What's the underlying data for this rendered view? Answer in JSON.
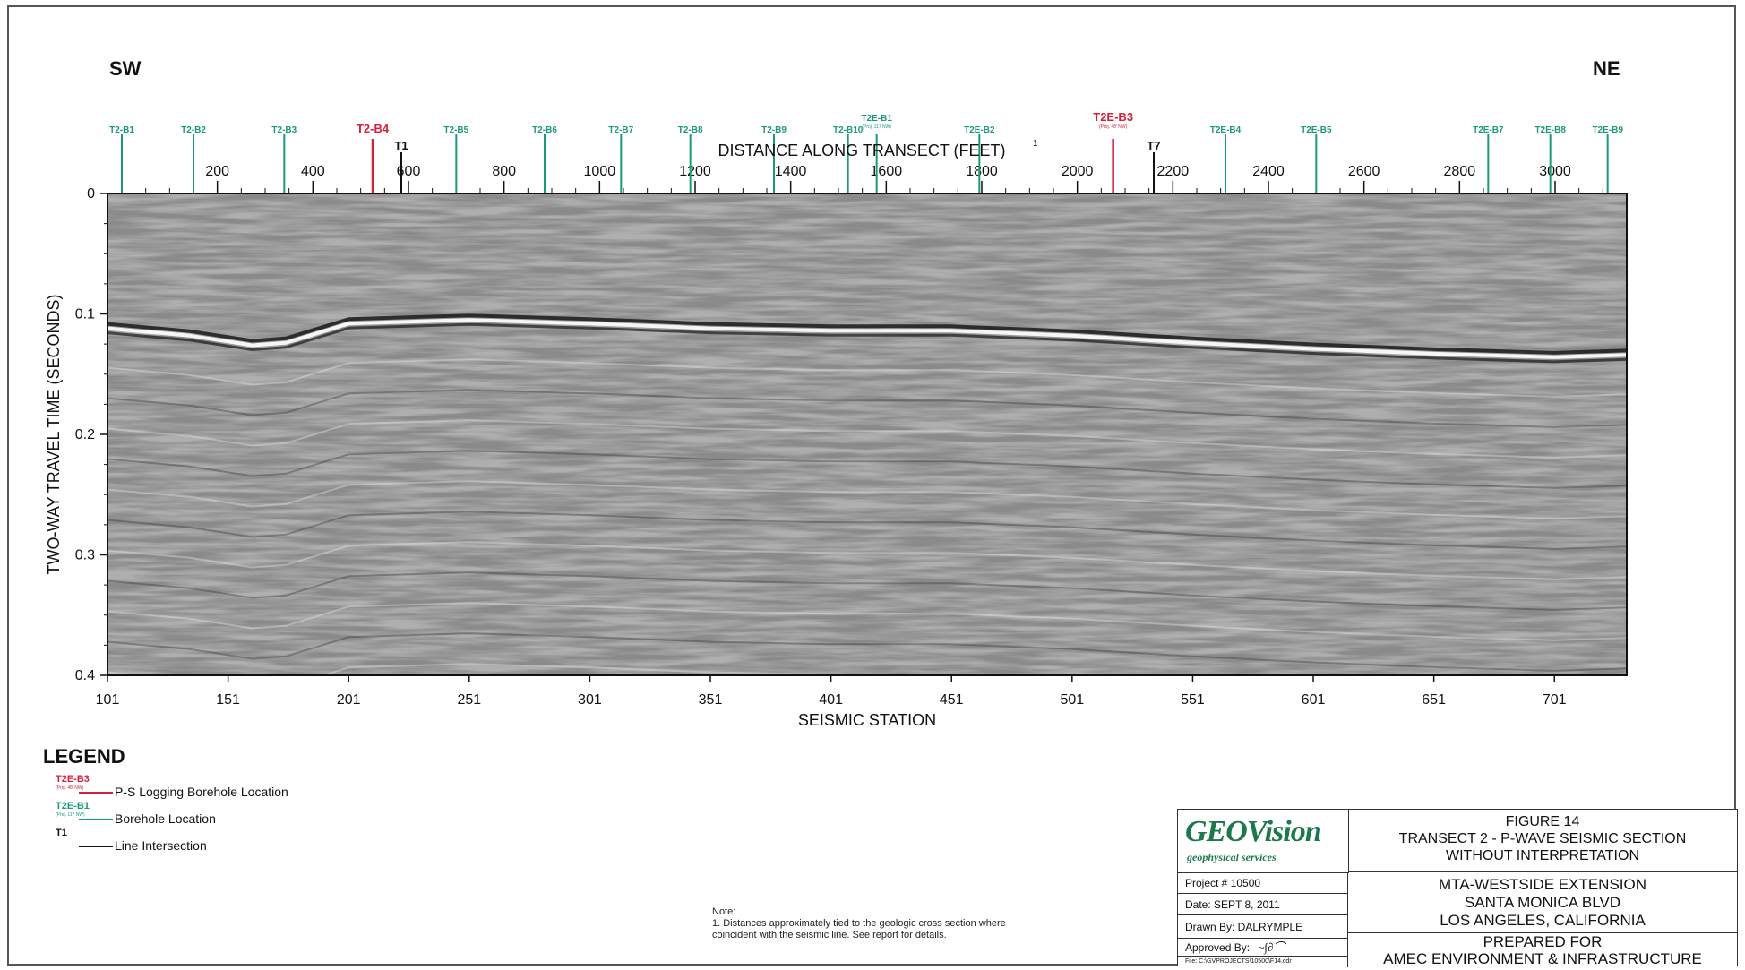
{
  "directions": {
    "left": "SW",
    "right": "NE"
  },
  "chart_data": {
    "type": "seismic_section",
    "top_axis_label": "DISTANCE ALONG TRANSECT (FEET)",
    "top_axis_superscript": "1",
    "top_axis_ticks": [
      "200",
      "400",
      "600",
      "800",
      "1000",
      "1200",
      "1400",
      "1600",
      "1800",
      "2000",
      "2200",
      "2400",
      "2600",
      "2800",
      "3000"
    ],
    "top_axis_range_ft": [
      -30,
      3150
    ],
    "xlabel": "SEISMIC STATION",
    "x_ticks": [
      "101",
      "151",
      "201",
      "251",
      "301",
      "351",
      "401",
      "451",
      "501",
      "551",
      "601",
      "651",
      "701"
    ],
    "x_range": [
      101,
      731
    ],
    "ylabel": "TWO-WAY TRAVEL TIME (SECONDS)",
    "y_ticks": [
      "0",
      "0.1",
      "0.2",
      "0.3",
      "0.4"
    ],
    "ylim": [
      0,
      0.4
    ],
    "boreholes": [
      {
        "name": "T2-B1",
        "ft": 0,
        "kind": "borehole"
      },
      {
        "name": "T2-B2",
        "ft": 150,
        "kind": "borehole"
      },
      {
        "name": "T2-B3",
        "ft": 340,
        "kind": "borehole"
      },
      {
        "name": "T2-B4",
        "ft": 525,
        "kind": "ps_logging"
      },
      {
        "name": "T2-B5",
        "ft": 700,
        "kind": "borehole"
      },
      {
        "name": "T2-B6",
        "ft": 885,
        "kind": "borehole"
      },
      {
        "name": "T2-B7",
        "ft": 1045,
        "kind": "borehole"
      },
      {
        "name": "T2-B8",
        "ft": 1190,
        "kind": "borehole"
      },
      {
        "name": "T2-B9",
        "ft": 1365,
        "kind": "borehole"
      },
      {
        "name": "T2-B10",
        "ft": 1520,
        "kind": "borehole"
      },
      {
        "name": "T2E-B1",
        "ft": 1580,
        "kind": "borehole",
        "sub": "(Proj. 117 NW)"
      },
      {
        "name": "T2E-B2",
        "ft": 1795,
        "kind": "borehole"
      },
      {
        "name": "T2E-B3",
        "ft": 2075,
        "kind": "ps_logging",
        "sub": "(Proj. 48' NW)"
      },
      {
        "name": "T2E-B4",
        "ft": 2310,
        "kind": "borehole"
      },
      {
        "name": "T2E-B5",
        "ft": 2500,
        "kind": "borehole"
      },
      {
        "name": "T2E-B7",
        "ft": 2860,
        "kind": "borehole"
      },
      {
        "name": "T2E-B8",
        "ft": 2990,
        "kind": "borehole"
      },
      {
        "name": "T2E-B9",
        "ft": 3110,
        "kind": "borehole"
      }
    ],
    "intersections": [
      {
        "name": "T1",
        "ft": 585
      },
      {
        "name": "T7",
        "ft": 2160
      }
    ],
    "reflectors": [
      {
        "name": "strong-reflector",
        "points": [
          [
            101,
            0.112
          ],
          [
            135,
            0.118
          ],
          [
            161,
            0.126
          ],
          [
            175,
            0.124
          ],
          [
            201,
            0.108
          ],
          [
            251,
            0.105
          ],
          [
            301,
            0.108
          ],
          [
            351,
            0.112
          ],
          [
            401,
            0.114
          ],
          [
            451,
            0.114
          ],
          [
            501,
            0.118
          ],
          [
            551,
            0.124
          ],
          [
            601,
            0.129
          ],
          [
            651,
            0.133
          ],
          [
            701,
            0.136
          ],
          [
            731,
            0.134
          ]
        ]
      }
    ]
  },
  "legend": {
    "title": "LEGEND",
    "items": [
      {
        "code": "T2E-B3",
        "sub": "(Proj. 48' NW)",
        "label": "P-S Logging Borehole Location",
        "color": "#d4203c"
      },
      {
        "code": "T2E-B1",
        "sub": "(Proj. 117 NW)",
        "label": "Borehole Location",
        "color": "#1a9a78"
      },
      {
        "code": "T1",
        "sub": "",
        "label": "Line Intersection",
        "color": "#111111"
      }
    ]
  },
  "note": {
    "title": "Note:",
    "body": "1.  Distances approximately tied to the geologic cross section where coincident with the seismic line.  See report for details."
  },
  "titleblock": {
    "logo": "GEOVision",
    "logo_sub": "geophysical services",
    "project": "Project #   10500",
    "date": "Date:   SEPT 8, 2011",
    "drawn_by": "Drawn By: DALRYMPLE",
    "approved_by": "Approved By:",
    "file": "File: C:\\GVPROJECTS\\10500\\F14.cdr",
    "figure": "FIGURE 14",
    "figure_title_1": "TRANSECT 2 - P-WAVE SEISMIC SECTION",
    "figure_title_2": "WITHOUT INTERPRETATION",
    "project_1": "MTA-WESTSIDE EXTENSION",
    "project_2": "SANTA MONICA BLVD",
    "project_3": "LOS ANGELES, CALIFORNIA",
    "prepared_1": "PREPARED FOR",
    "prepared_2": "AMEC ENVIRONMENT & INFRASTRUCTURE"
  },
  "colors": {
    "borehole": "#1a9a78",
    "ps_logging": "#d4203c",
    "intersection": "#111111"
  }
}
